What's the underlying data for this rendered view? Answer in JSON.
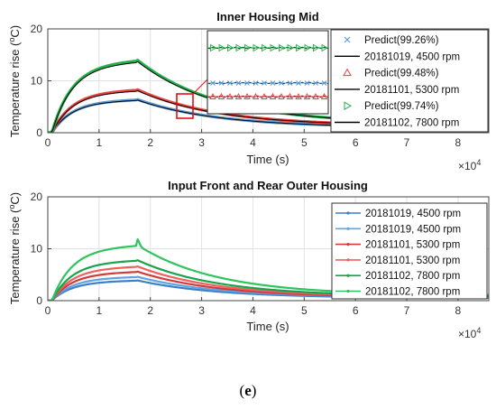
{
  "chart_data": [
    {
      "type": "line",
      "title": "Inner Housing Mid",
      "xlabel": "Time (s)",
      "ylabel_main": "Temperature rise (",
      "ylabel_sup": "o",
      "ylabel_tail": "C)",
      "x_exponent_base": "×10",
      "x_exponent_power": "4",
      "xlim": [
        0,
        8.6
      ],
      "ylim": [
        0,
        20
      ],
      "xticks": [
        0,
        1,
        2,
        3,
        4,
        5,
        6,
        7,
        8
      ],
      "yticks": [
        0,
        10,
        20
      ],
      "grid": true,
      "legend_position": "top-right",
      "series": [
        {
          "name": "Predict(99.26%)",
          "marker": "x",
          "color": "#5b9bd5",
          "peak": 6.4,
          "end": 1.0
        },
        {
          "name": "20181019, 4500 rpm",
          "marker": "none",
          "color": "#000000",
          "peak": 6.3,
          "end": 1.0
        },
        {
          "name": "Predict(99.48%)",
          "marker": "triangle-up",
          "color": "#e8433f",
          "peak": 8.3,
          "end": 1.3
        },
        {
          "name": "20181101, 5300 rpm",
          "marker": "none",
          "color": "#000000",
          "peak": 8.1,
          "end": 1.3
        },
        {
          "name": "Predict(99.74%)",
          "marker": "triangle-right",
          "color": "#21b04b",
          "peak": 14.0,
          "end": 1.8
        },
        {
          "name": "20181102, 7800 rpm",
          "marker": "none",
          "color": "#000000",
          "peak": 13.7,
          "end": 1.8
        }
      ],
      "peak_time": 1.75
    },
    {
      "type": "line",
      "title": "Input Front and Rear Outer Housing",
      "xlabel": "Time (s)",
      "ylabel_main": "Temperature rise (",
      "ylabel_sup": "o",
      "ylabel_tail": "C)",
      "x_exponent_base": "×10",
      "x_exponent_power": "4",
      "xlim": [
        0,
        8.6
      ],
      "ylim": [
        0,
        20
      ],
      "xticks": [
        0,
        1,
        2,
        3,
        4,
        5,
        6,
        7,
        8
      ],
      "yticks": [
        0,
        10,
        20
      ],
      "grid": true,
      "legend_position": "top-right",
      "series": [
        {
          "name": "20181019, 4500 rpm",
          "color": "#3d7fc7",
          "peak": 3.9,
          "end": 0.5
        },
        {
          "name": "20181019, 4500 rpm",
          "color": "#5fa3e0",
          "peak": 4.6,
          "end": 0.6
        },
        {
          "name": "20181101, 5300 rpm",
          "color": "#d33b3b",
          "peak": 5.6,
          "end": 0.6
        },
        {
          "name": "20181101, 5300 rpm",
          "color": "#f06060",
          "peak": 6.6,
          "end": 0.7
        },
        {
          "name": "20181102, 7800 rpm",
          "color": "#19a34a",
          "peak": 7.8,
          "end": 0.8
        },
        {
          "name": "20181102, 7800 rpm",
          "color": "#2ec45e",
          "peak": 10.7,
          "end": 1.0
        }
      ],
      "peak_time": 1.75
    }
  ],
  "caption": {
    "open": "(",
    "letter": "e",
    "close": ")"
  }
}
